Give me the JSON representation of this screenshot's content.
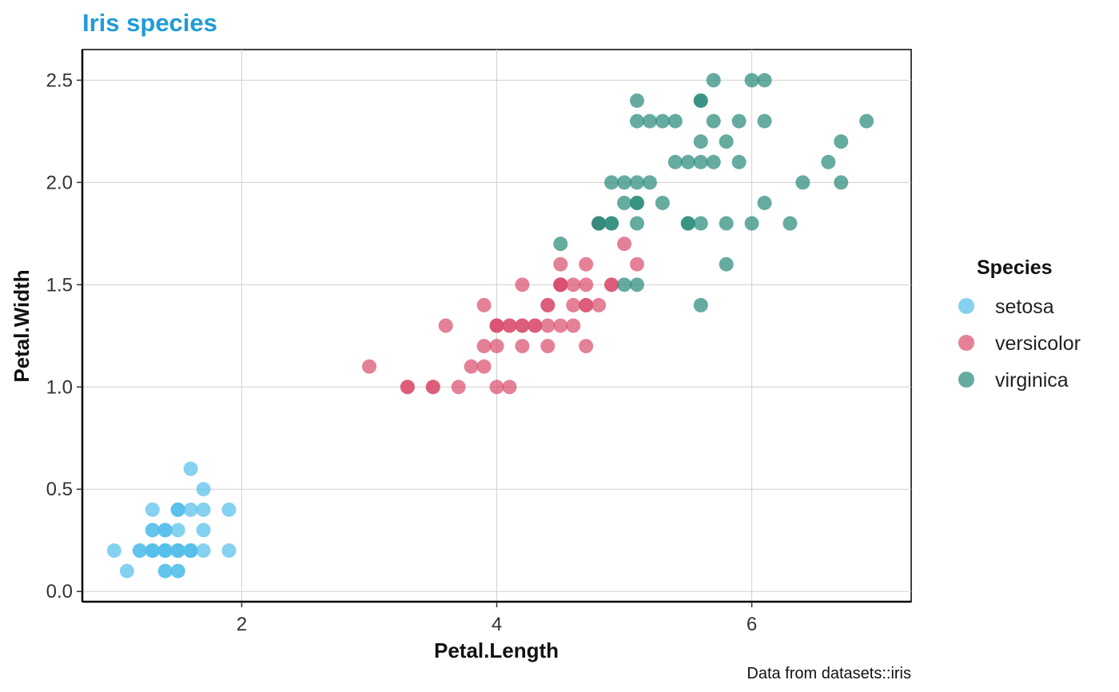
{
  "chart_data": {
    "type": "scatter",
    "title": "Iris species",
    "xlabel": "Petal.Length",
    "ylabel": "Petal.Width",
    "caption": "Data from datasets::iris",
    "xlim": [
      0.75,
      7.25
    ],
    "ylim": [
      -0.05,
      2.65
    ],
    "x_ticks": [
      2,
      4,
      6
    ],
    "x_tick_labels": [
      "2",
      "4",
      "6"
    ],
    "y_ticks": [
      0.0,
      0.5,
      1.0,
      1.5,
      2.0,
      2.5
    ],
    "y_tick_labels": [
      "0.0",
      "0.5",
      "1.0",
      "1.5",
      "2.0",
      "2.5"
    ],
    "grid": true,
    "legend": {
      "title": "Species",
      "placement": "right"
    },
    "colors": {
      "title": "#1f9bd8",
      "setosa": "#56bfea",
      "versicolor": "#d9506f",
      "virginica": "#2a8a7c"
    },
    "series": [
      {
        "name": "setosa",
        "points": [
          [
            1.4,
            0.2
          ],
          [
            1.4,
            0.2
          ],
          [
            1.3,
            0.2
          ],
          [
            1.5,
            0.2
          ],
          [
            1.4,
            0.2
          ],
          [
            1.7,
            0.4
          ],
          [
            1.4,
            0.3
          ],
          [
            1.5,
            0.2
          ],
          [
            1.4,
            0.2
          ],
          [
            1.5,
            0.1
          ],
          [
            1.5,
            0.2
          ],
          [
            1.6,
            0.2
          ],
          [
            1.4,
            0.1
          ],
          [
            1.1,
            0.1
          ],
          [
            1.2,
            0.2
          ],
          [
            1.5,
            0.4
          ],
          [
            1.3,
            0.4
          ],
          [
            1.4,
            0.3
          ],
          [
            1.7,
            0.3
          ],
          [
            1.5,
            0.3
          ],
          [
            1.7,
            0.2
          ],
          [
            1.5,
            0.4
          ],
          [
            1.0,
            0.2
          ],
          [
            1.7,
            0.5
          ],
          [
            1.9,
            0.2
          ],
          [
            1.6,
            0.2
          ],
          [
            1.6,
            0.4
          ],
          [
            1.5,
            0.2
          ],
          [
            1.4,
            0.2
          ],
          [
            1.6,
            0.2
          ],
          [
            1.6,
            0.2
          ],
          [
            1.5,
            0.4
          ],
          [
            1.5,
            0.1
          ],
          [
            1.4,
            0.2
          ],
          [
            1.5,
            0.2
          ],
          [
            1.2,
            0.2
          ],
          [
            1.3,
            0.2
          ],
          [
            1.4,
            0.1
          ],
          [
            1.3,
            0.2
          ],
          [
            1.5,
            0.2
          ],
          [
            1.3,
            0.3
          ],
          [
            1.3,
            0.3
          ],
          [
            1.3,
            0.2
          ],
          [
            1.6,
            0.6
          ],
          [
            1.9,
            0.4
          ],
          [
            1.4,
            0.3
          ],
          [
            1.6,
            0.2
          ],
          [
            1.4,
            0.2
          ],
          [
            1.5,
            0.2
          ],
          [
            1.4,
            0.2
          ]
        ]
      },
      {
        "name": "versicolor",
        "points": [
          [
            4.7,
            1.4
          ],
          [
            4.5,
            1.5
          ],
          [
            4.9,
            1.5
          ],
          [
            4.0,
            1.3
          ],
          [
            4.6,
            1.5
          ],
          [
            4.5,
            1.3
          ],
          [
            4.7,
            1.6
          ],
          [
            3.3,
            1.0
          ],
          [
            4.6,
            1.3
          ],
          [
            3.9,
            1.4
          ],
          [
            3.5,
            1.0
          ],
          [
            4.2,
            1.5
          ],
          [
            4.0,
            1.0
          ],
          [
            4.7,
            1.4
          ],
          [
            3.6,
            1.3
          ],
          [
            4.4,
            1.4
          ],
          [
            4.5,
            1.5
          ],
          [
            4.1,
            1.0
          ],
          [
            4.5,
            1.5
          ],
          [
            3.9,
            1.1
          ],
          [
            4.8,
            1.8
          ],
          [
            4.0,
            1.3
          ],
          [
            4.9,
            1.5
          ],
          [
            4.7,
            1.2
          ],
          [
            4.3,
            1.3
          ],
          [
            4.4,
            1.4
          ],
          [
            4.8,
            1.4
          ],
          [
            5.0,
            1.7
          ],
          [
            4.5,
            1.5
          ],
          [
            3.5,
            1.0
          ],
          [
            3.8,
            1.1
          ],
          [
            3.7,
            1.0
          ],
          [
            3.9,
            1.2
          ],
          [
            5.1,
            1.6
          ],
          [
            4.5,
            1.5
          ],
          [
            4.5,
            1.6
          ],
          [
            4.7,
            1.5
          ],
          [
            4.4,
            1.3
          ],
          [
            4.1,
            1.3
          ],
          [
            4.0,
            1.3
          ],
          [
            4.4,
            1.2
          ],
          [
            4.6,
            1.4
          ],
          [
            4.0,
            1.2
          ],
          [
            3.3,
            1.0
          ],
          [
            4.2,
            1.3
          ],
          [
            4.2,
            1.2
          ],
          [
            4.2,
            1.3
          ],
          [
            4.3,
            1.3
          ],
          [
            3.0,
            1.1
          ],
          [
            4.1,
            1.3
          ]
        ]
      },
      {
        "name": "virginica",
        "points": [
          [
            6.0,
            2.5
          ],
          [
            5.1,
            1.9
          ],
          [
            5.9,
            2.1
          ],
          [
            5.6,
            1.8
          ],
          [
            5.8,
            2.2
          ],
          [
            6.6,
            2.1
          ],
          [
            4.5,
            1.7
          ],
          [
            6.3,
            1.8
          ],
          [
            5.8,
            1.8
          ],
          [
            6.1,
            2.5
          ],
          [
            5.1,
            2.0
          ],
          [
            5.3,
            1.9
          ],
          [
            5.5,
            2.1
          ],
          [
            5.0,
            2.0
          ],
          [
            5.1,
            2.4
          ],
          [
            5.3,
            2.3
          ],
          [
            5.5,
            1.8
          ],
          [
            6.7,
            2.2
          ],
          [
            6.9,
            2.3
          ],
          [
            5.0,
            1.5
          ],
          [
            5.7,
            2.3
          ],
          [
            4.9,
            2.0
          ],
          [
            6.7,
            2.0
          ],
          [
            4.9,
            1.8
          ],
          [
            5.7,
            2.1
          ],
          [
            6.0,
            1.8
          ],
          [
            4.8,
            1.8
          ],
          [
            4.9,
            1.8
          ],
          [
            5.6,
            2.1
          ],
          [
            5.8,
            1.6
          ],
          [
            6.1,
            1.9
          ],
          [
            6.4,
            2.0
          ],
          [
            5.6,
            2.2
          ],
          [
            5.1,
            1.5
          ],
          [
            5.6,
            1.4
          ],
          [
            6.1,
            2.3
          ],
          [
            5.6,
            2.4
          ],
          [
            5.5,
            1.8
          ],
          [
            4.8,
            1.8
          ],
          [
            5.4,
            2.1
          ],
          [
            5.6,
            2.4
          ],
          [
            5.1,
            2.3
          ],
          [
            5.1,
            1.9
          ],
          [
            5.9,
            2.3
          ],
          [
            5.7,
            2.5
          ],
          [
            5.2,
            2.3
          ],
          [
            5.0,
            1.9
          ],
          [
            5.2,
            2.0
          ],
          [
            5.4,
            2.3
          ],
          [
            5.1,
            1.8
          ]
        ]
      }
    ]
  }
}
